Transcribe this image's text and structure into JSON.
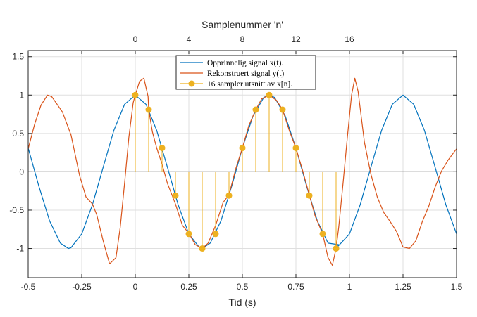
{
  "chart_data": {
    "type": "line",
    "title": "",
    "xlabel": "Tid (s)",
    "xlabel_top": "Samplenummer 'n'",
    "ylabel": "",
    "xlim": [
      -0.5,
      1.5
    ],
    "ylim": [
      -1.38,
      1.58
    ],
    "grid": true,
    "legend_position": "top-center",
    "x_ticks": [
      -0.5,
      -0.25,
      0,
      0.25,
      0.5,
      0.75,
      1,
      1.25,
      1.5
    ],
    "x_tick_labels": [
      "-0.5",
      "-0.25",
      "0",
      "0.25",
      "0.5",
      "0.75",
      "1",
      "1.25",
      "1.5"
    ],
    "y_ticks": [
      -1,
      -0.5,
      0,
      0.5,
      1,
      1.5
    ],
    "y_tick_labels": [
      "-1",
      "-0.5",
      "0",
      "0.5",
      "1",
      "1.5"
    ],
    "top_ticks_t": [
      0,
      0.25,
      0.5,
      0.75,
      1.0
    ],
    "top_tick_labels": [
      "0",
      "4",
      "8",
      "12",
      "16"
    ],
    "series": [
      {
        "name": "Opprinnelig signal x(t).",
        "color": "#0072BD",
        "style": "line",
        "x": [
          -0.5,
          -0.45,
          -0.4,
          -0.35,
          -0.3125,
          -0.3,
          -0.25,
          -0.2,
          -0.15,
          -0.1,
          -0.05,
          0,
          0.05,
          0.1,
          0.15,
          0.2,
          0.25,
          0.3,
          0.3125,
          0.35,
          0.4,
          0.45,
          0.5,
          0.55,
          0.6,
          0.625,
          0.65,
          0.7,
          0.75,
          0.8,
          0.85,
          0.9,
          0.95,
          0.9375,
          1.0,
          1.05,
          1.1,
          1.15,
          1.2,
          1.25,
          1.3,
          1.35,
          1.4,
          1.45,
          1.5
        ],
        "y": [
          0.31,
          -0.19,
          -0.64,
          -0.93,
          -1.0,
          -0.99,
          -0.81,
          -0.43,
          0.06,
          0.54,
          0.88,
          1.0,
          0.88,
          0.54,
          0.06,
          -0.43,
          -0.81,
          -0.99,
          -1.0,
          -0.93,
          -0.64,
          -0.19,
          0.31,
          0.73,
          0.97,
          1.0,
          0.97,
          0.73,
          0.31,
          -0.19,
          -0.64,
          -0.93,
          -0.95,
          -1.0,
          -0.81,
          -0.43,
          0.06,
          0.54,
          0.88,
          1.0,
          0.88,
          0.54,
          0.06,
          -0.43,
          -0.81
        ]
      },
      {
        "name": "Rekonstruert signal y(t)",
        "color": "#D95319",
        "style": "line",
        "x": [
          -0.5,
          -0.47,
          -0.44,
          -0.41,
          -0.39,
          -0.37,
          -0.34,
          -0.3,
          -0.26,
          -0.23,
          -0.2,
          -0.18,
          -0.15,
          -0.12,
          -0.09,
          -0.07,
          -0.05,
          -0.03,
          -0.01,
          0,
          0.02,
          0.04,
          0.06,
          0.0625,
          0.08,
          0.1,
          0.125,
          0.15,
          0.1875,
          0.22,
          0.25,
          0.28,
          0.3125,
          0.34,
          0.375,
          0.41,
          0.4375,
          0.47,
          0.5,
          0.53,
          0.5625,
          0.59,
          0.625,
          0.66,
          0.6875,
          0.72,
          0.75,
          0.78,
          0.8125,
          0.84,
          0.875,
          0.9,
          0.92,
          0.9375,
          0.95,
          0.97,
          0.99,
          1.01,
          1.025,
          1.04,
          1.07,
          1.1,
          1.13,
          1.16,
          1.19,
          1.22,
          1.25,
          1.28,
          1.31,
          1.34,
          1.37,
          1.4,
          1.43,
          1.46,
          1.5
        ],
        "y": [
          0.3,
          0.62,
          0.87,
          1.0,
          0.98,
          0.9,
          0.78,
          0.48,
          -0.05,
          -0.33,
          -0.42,
          -0.56,
          -0.9,
          -1.2,
          -1.12,
          -0.72,
          -0.15,
          0.45,
          0.9,
          1.0,
          1.18,
          1.22,
          0.98,
          0.81,
          0.52,
          0.31,
          0.1,
          -0.15,
          -0.42,
          -0.7,
          -0.8,
          -0.95,
          -1.0,
          -0.93,
          -0.7,
          -0.4,
          -0.3,
          0.05,
          0.31,
          0.6,
          0.81,
          0.95,
          1.0,
          0.93,
          0.81,
          0.53,
          0.31,
          0.03,
          -0.3,
          -0.58,
          -0.81,
          -1.12,
          -1.22,
          -1.0,
          -0.72,
          -0.15,
          0.45,
          1.0,
          1.22,
          1.05,
          0.38,
          -0.03,
          -0.33,
          -0.53,
          -0.65,
          -0.78,
          -0.98,
          -1.0,
          -0.9,
          -0.65,
          -0.45,
          -0.2,
          0.01,
          0.15,
          0.3
        ]
      },
      {
        "name": "16 sampler utsnitt av x[n].",
        "color": "#EDB120",
        "style": "stem",
        "x": [
          0,
          0.0625,
          0.125,
          0.1875,
          0.25,
          0.3125,
          0.375,
          0.4375,
          0.5,
          0.5625,
          0.625,
          0.6875,
          0.75,
          0.8125,
          0.875,
          0.9375
        ],
        "y": [
          1.0,
          0.81,
          0.31,
          -0.31,
          -0.81,
          -1.0,
          -0.81,
          -0.31,
          0.31,
          0.81,
          1.0,
          0.81,
          0.31,
          -0.31,
          -0.81,
          -1.0
        ]
      }
    ]
  }
}
